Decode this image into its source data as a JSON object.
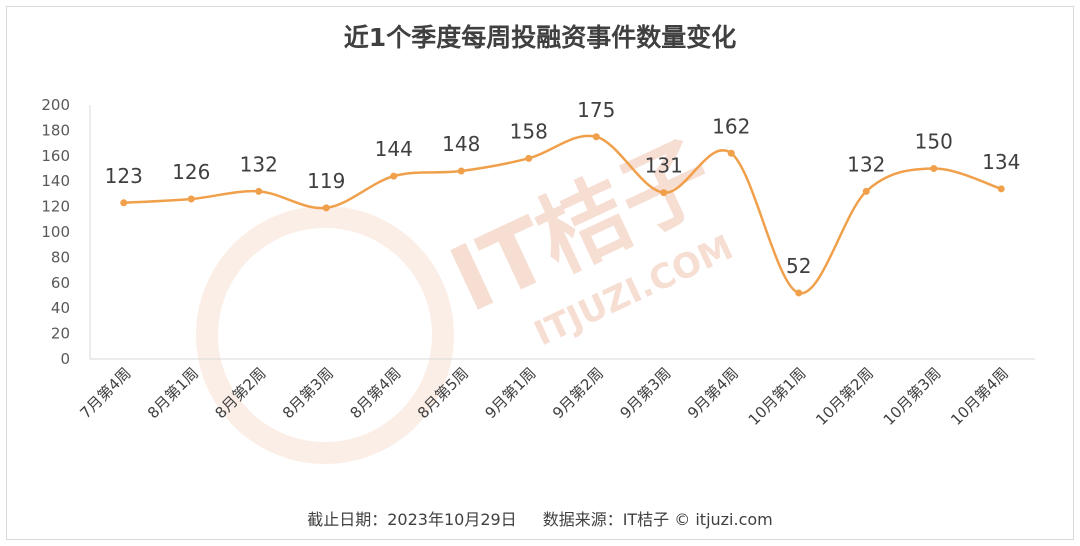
{
  "chart_data": {
    "type": "line",
    "title": "近1个季度每周投融资事件数量变化",
    "categories": [
      "7月第4周",
      "8月第1周",
      "8月第2周",
      "8月第3周",
      "8月第4周",
      "8月第5周",
      "9月第1周",
      "9月第2周",
      "9月第3周",
      "9月第4周",
      "10月第1周",
      "10月第2周",
      "10月第3周",
      "10月第4周"
    ],
    "values": [
      123,
      126,
      132,
      119,
      144,
      148,
      158,
      175,
      131,
      162,
      52,
      132,
      150,
      134
    ],
    "ylim": [
      0,
      200
    ],
    "yticks": [
      0,
      20,
      40,
      60,
      80,
      100,
      120,
      140,
      160,
      180,
      200
    ],
    "grid": false,
    "smooth": true,
    "color": "#f0a04b"
  },
  "footer": {
    "date": "截止日期：2023年10月29日",
    "source": "数据来源：IT桔子 © itjuzi.com"
  },
  "watermark": {
    "text": "IT桔子",
    "sub": "ITJUZI.COM"
  }
}
